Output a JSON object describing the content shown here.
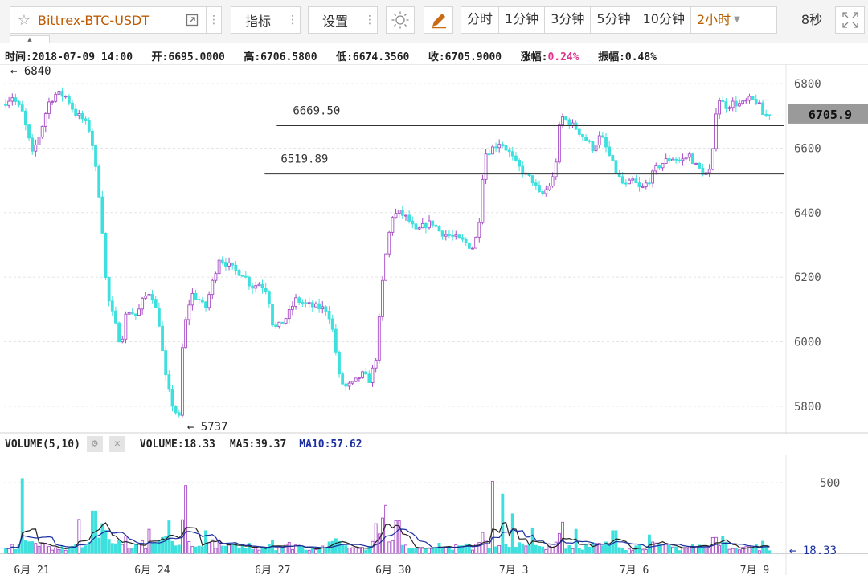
{
  "toolbar": {
    "symbol": "Bittrex-BTC-USDT",
    "indicators_label": "指标",
    "settings_label": "设置",
    "periods": [
      "分时",
      "1分钟",
      "3分钟",
      "5分钟",
      "10分钟",
      "2小时"
    ],
    "active_period": "2小时",
    "refresh": "8秒"
  },
  "info": {
    "time_label": "时间:2018-07-09 14:00",
    "open_label": "开:6695.0000",
    "high_label": "高:6706.5800",
    "low_label": "低:6674.3560",
    "close_label": "收:6705.9000",
    "change_label": "涨幅:",
    "change_value": "0.24%",
    "amplitude_label": "振幅:0.48%"
  },
  "chart_data": [
    {
      "type": "candlestick",
      "title": "Bittrex-BTC-USDT 2小时",
      "ylim": [
        5720,
        6860
      ],
      "y_ticks": [
        5800,
        6000,
        6200,
        6400,
        6600,
        6800
      ],
      "x_ticks": [
        {
          "label": "6月 21",
          "day": 1.0
        },
        {
          "label": "6月 24",
          "day": 4.0
        },
        {
          "label": "6月 27",
          "day": 7.0
        },
        {
          "label": "6月 30",
          "day": 10.0
        },
        {
          "label": "7月 3",
          "day": 13.0
        },
        {
          "label": "7月 6",
          "day": 16.0
        },
        {
          "label": "7月 9",
          "day": 19.0
        }
      ],
      "x_range_days": [
        0.35,
        19.6
      ],
      "price_path": [
        [
          0.35,
          6735
        ],
        [
          0.6,
          6760
        ],
        [
          0.85,
          6710
        ],
        [
          1.1,
          6580
        ],
        [
          1.3,
          6650
        ],
        [
          1.5,
          6740
        ],
        [
          1.7,
          6770
        ],
        [
          1.95,
          6760
        ],
        [
          2.15,
          6710
        ],
        [
          2.35,
          6690
        ],
        [
          2.55,
          6650
        ],
        [
          2.8,
          6420
        ],
        [
          2.95,
          6150
        ],
        [
          3.15,
          6060
        ],
        [
          3.3,
          5990
        ],
        [
          3.45,
          6100
        ],
        [
          3.7,
          6080
        ],
        [
          3.85,
          6130
        ],
        [
          4.05,
          6160
        ],
        [
          4.25,
          6060
        ],
        [
          4.4,
          5900
        ],
        [
          4.55,
          5815
        ],
        [
          4.75,
          5760
        ],
        [
          4.85,
          6020
        ],
        [
          5.05,
          6150
        ],
        [
          5.25,
          6130
        ],
        [
          5.4,
          6100
        ],
        [
          5.55,
          6170
        ],
        [
          5.75,
          6260
        ],
        [
          5.95,
          6240
        ],
        [
          6.15,
          6220
        ],
        [
          6.35,
          6210
        ],
        [
          6.55,
          6170
        ],
        [
          6.75,
          6180
        ],
        [
          6.95,
          6160
        ],
        [
          7.1,
          6040
        ],
        [
          7.25,
          6050
        ],
        [
          7.45,
          6080
        ],
        [
          7.65,
          6130
        ],
        [
          7.85,
          6120
        ],
        [
          8.05,
          6110
        ],
        [
          8.25,
          6105
        ],
        [
          8.45,
          6100
        ],
        [
          8.6,
          6020
        ],
        [
          8.75,
          5880
        ],
        [
          8.9,
          5860
        ],
        [
          9.1,
          5870
        ],
        [
          9.3,
          5900
        ],
        [
          9.5,
          5880
        ],
        [
          9.65,
          5950
        ],
        [
          9.85,
          6230
        ],
        [
          10.05,
          6390
        ],
        [
          10.25,
          6400
        ],
        [
          10.45,
          6380
        ],
        [
          10.65,
          6340
        ],
        [
          10.85,
          6360
        ],
        [
          11.05,
          6370
        ],
        [
          11.25,
          6340
        ],
        [
          11.45,
          6330
        ],
        [
          11.65,
          6320
        ],
        [
          11.85,
          6310
        ],
        [
          12.05,
          6290
        ],
        [
          12.2,
          6340
        ],
        [
          12.35,
          6580
        ],
        [
          12.55,
          6600
        ],
        [
          12.75,
          6620
        ],
        [
          12.95,
          6590
        ],
        [
          13.15,
          6550
        ],
        [
          13.35,
          6520
        ],
        [
          13.55,
          6500
        ],
        [
          13.75,
          6450
        ],
        [
          13.95,
          6480
        ],
        [
          14.1,
          6520
        ],
        [
          14.25,
          6700
        ],
        [
          14.45,
          6680
        ],
        [
          14.65,
          6660
        ],
        [
          14.85,
          6630
        ],
        [
          15.05,
          6600
        ],
        [
          15.25,
          6640
        ],
        [
          15.45,
          6580
        ],
        [
          15.65,
          6520
        ],
        [
          15.85,
          6480
        ],
        [
          16.05,
          6500
        ],
        [
          16.25,
          6470
        ],
        [
          16.45,
          6500
        ],
        [
          16.65,
          6540
        ],
        [
          16.85,
          6560
        ],
        [
          17.05,
          6570
        ],
        [
          17.25,
          6560
        ],
        [
          17.45,
          6580
        ],
        [
          17.65,
          6540
        ],
        [
          17.85,
          6520
        ],
        [
          18.0,
          6530
        ],
        [
          18.15,
          6760
        ],
        [
          18.35,
          6730
        ],
        [
          18.55,
          6740
        ],
        [
          18.75,
          6735
        ],
        [
          18.95,
          6750
        ],
        [
          19.15,
          6745
        ],
        [
          19.3,
          6700
        ],
        [
          19.45,
          6706
        ]
      ],
      "annotations": {
        "max_label": "6840",
        "max_day": 0.35,
        "max_price": 6840,
        "min_label": "5737",
        "min_day": 4.75,
        "min_price": 5737,
        "lines": [
          {
            "label": "6669.50",
            "value": 6669.5,
            "from_day": 7.1
          },
          {
            "label": "6519.89",
            "value": 6519.89,
            "from_day": 6.8
          }
        ],
        "last_price_label": "6705.9",
        "last_price": 6705.9
      },
      "colors": {
        "up": "#a84cc7",
        "down": "#3ee0de"
      },
      "grid": true
    },
    {
      "type": "bar",
      "title": "VOLUME(5,10)",
      "series": [
        {
          "name": "VOLUME",
          "value_label": "VOLUME:18.33"
        },
        {
          "name": "MA5",
          "value_label": "MA5:39.37",
          "color": "#222222"
        },
        {
          "name": "MA10",
          "value_label": "MA10:57.62",
          "color": "#1b2fa0"
        }
      ],
      "y_ticks": [
        500
      ],
      "ylim": [
        0,
        700
      ],
      "last_volume_label": "18.33",
      "last_volume": 18.33,
      "spikes": [
        [
          0.75,
          530
        ],
        [
          2.2,
          240
        ],
        [
          2.55,
          300
        ],
        [
          2.75,
          210
        ],
        [
          3.9,
          170
        ],
        [
          4.4,
          230
        ],
        [
          4.85,
          480
        ],
        [
          5.3,
          160
        ],
        [
          9.6,
          210
        ],
        [
          9.75,
          250
        ],
        [
          9.85,
          340
        ],
        [
          10.1,
          230
        ],
        [
          12.5,
          510
        ],
        [
          12.7,
          420
        ],
        [
          12.95,
          280
        ],
        [
          13.5,
          180
        ],
        [
          14.25,
          220
        ],
        [
          14.55,
          170
        ],
        [
          15.5,
          160
        ],
        [
          16.4,
          130
        ],
        [
          18.2,
          120
        ]
      ]
    }
  ]
}
